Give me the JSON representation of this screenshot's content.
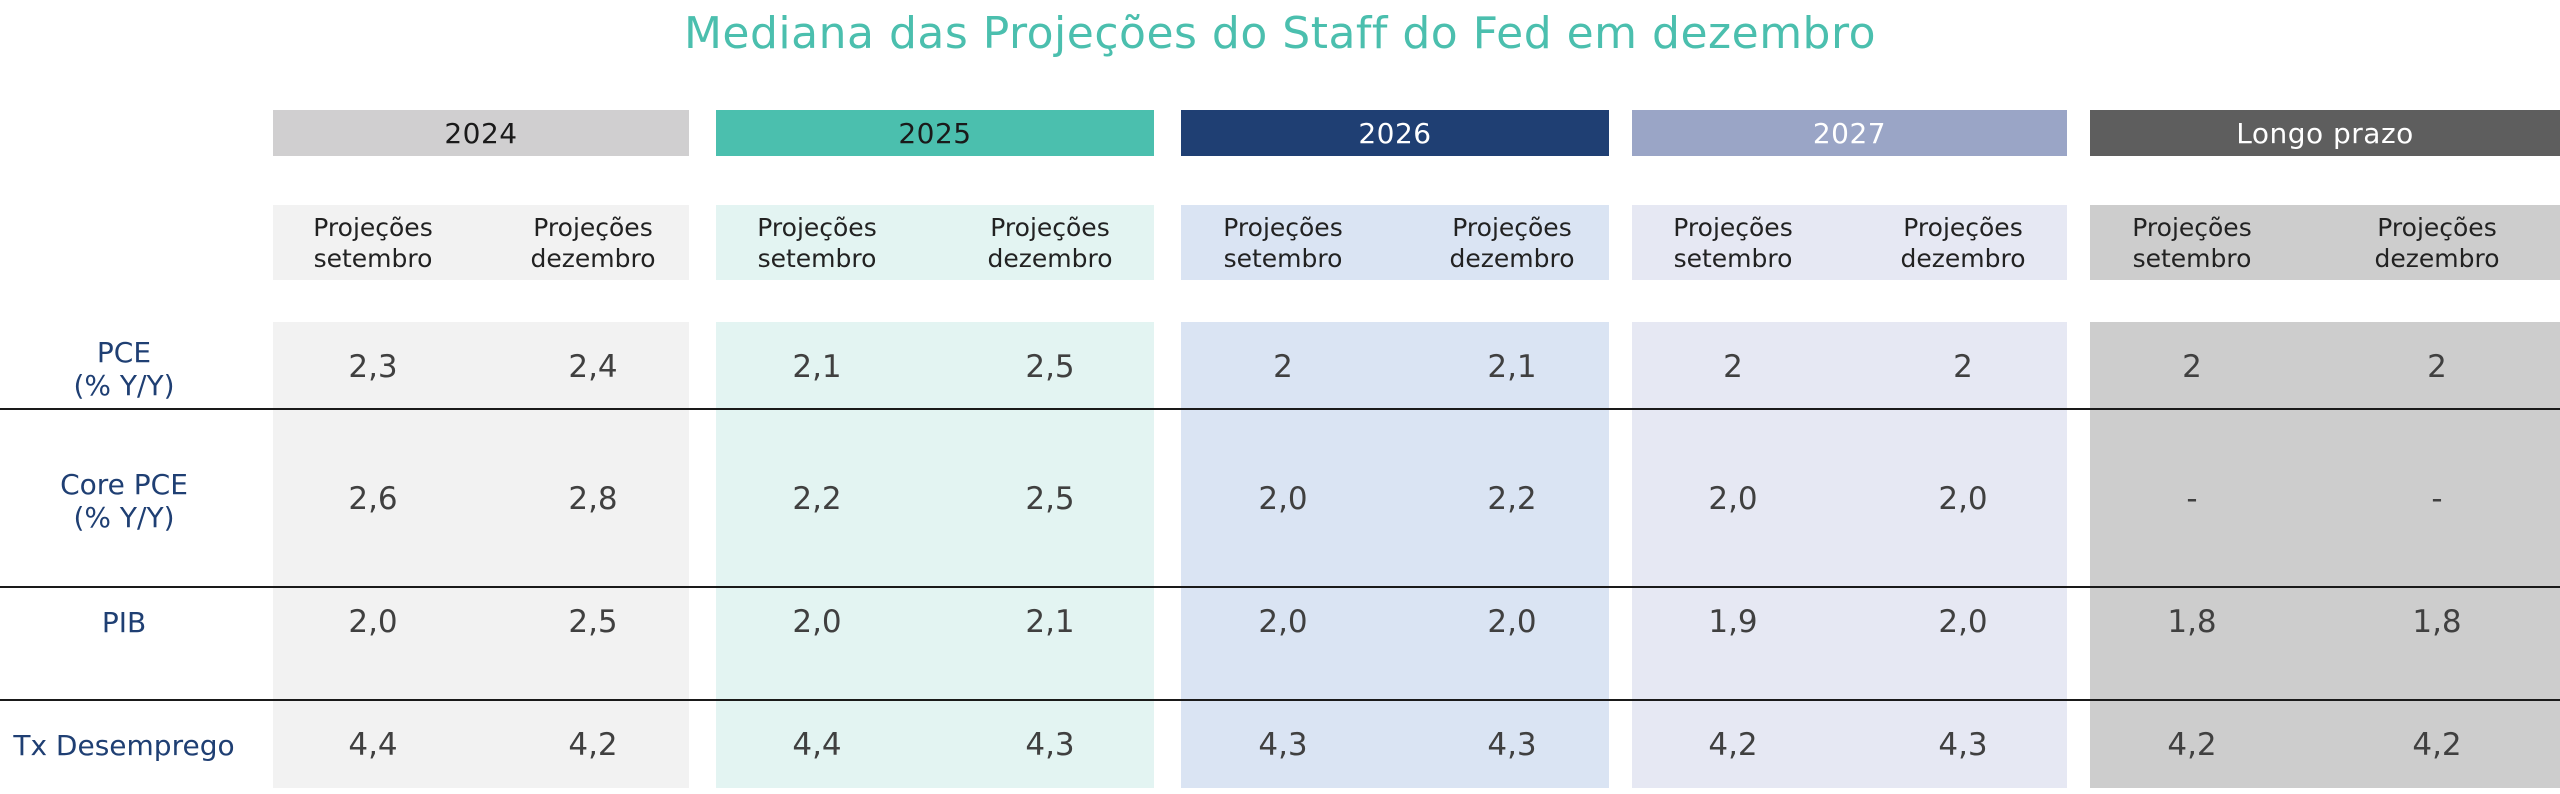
{
  "chart_data": {
    "type": "table",
    "title": "Mediana das Projeções do Staff do Fed em dezembro",
    "groups": [
      {
        "label": "2024",
        "header_color": "#d0cfd0",
        "header_text_color": "#1a1a1a",
        "body_color": "#f2f2f2",
        "sub_color": "#f2f2f2"
      },
      {
        "label": "2025",
        "header_color": "#4bbfae",
        "header_text_color": "#1a1a1a",
        "body_color": "#e3f4f2",
        "sub_color": "#e3f4f2"
      },
      {
        "label": "2026",
        "header_color": "#1f3f73",
        "header_text_color": "#ffffff",
        "body_color": "#dae4f3",
        "sub_color": "#dae4f3"
      },
      {
        "label": "2027",
        "header_color": "#9aa5c6",
        "header_text_color": "#ffffff",
        "body_color": "#e6e8f3",
        "sub_color": "#e6e8f3"
      },
      {
        "label": "Longo prazo",
        "header_color": "#5e5e5e",
        "header_text_color": "#ffffff",
        "body_color": "#cdcdcd",
        "sub_color": "#cdcdcd"
      }
    ],
    "subcolumns": [
      [
        "Projeções",
        "setembro"
      ],
      [
        "Projeções",
        "dezembro"
      ]
    ],
    "rows": [
      {
        "label": [
          "PCE",
          "(% Y/Y)"
        ],
        "values": [
          "2,3",
          "2,4",
          "2,1",
          "2,5",
          "2",
          "2,1",
          "2",
          "2",
          "2",
          "2"
        ]
      },
      {
        "label": [
          "Core PCE",
          "(% Y/Y)"
        ],
        "values": [
          "2,6",
          "2,8",
          "2,2",
          "2,5",
          "2,0",
          "2,2",
          "2,0",
          "2,0",
          "-",
          "-"
        ]
      },
      {
        "label": [
          "PIB"
        ],
        "values": [
          "2,0",
          "2,5",
          "2,0",
          "2,1",
          "2,0",
          "2,0",
          "1,9",
          "2,0",
          "1,8",
          "1,8"
        ]
      },
      {
        "label": [
          "Tx Desemprego"
        ],
        "values": [
          "4,4",
          "4,2",
          "4,4",
          "4,3",
          "4,3",
          "4,3",
          "4,2",
          "4,3",
          "4,2",
          "4,2"
        ]
      }
    ]
  }
}
